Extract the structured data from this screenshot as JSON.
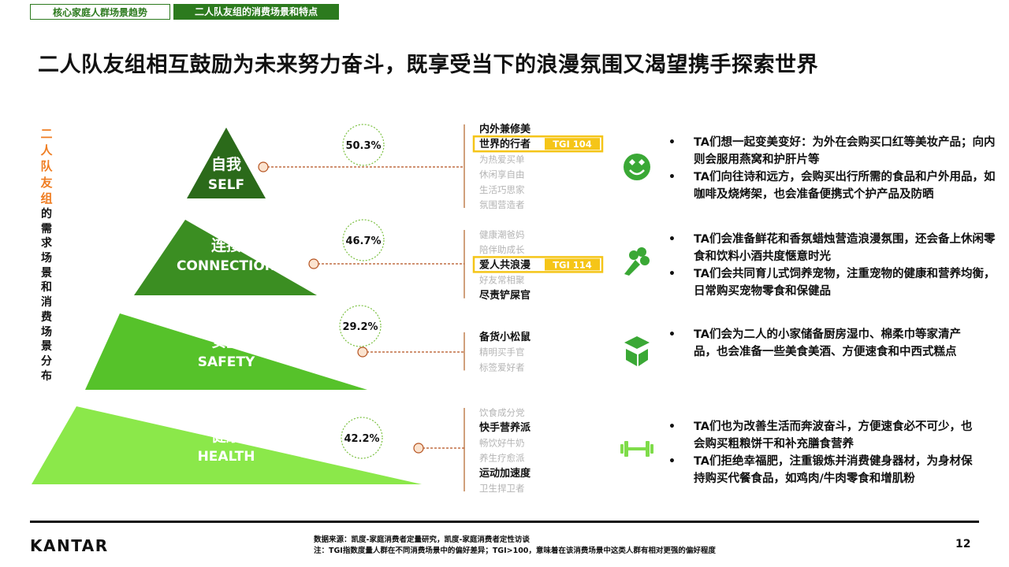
{
  "tabs": {
    "tab1": "核心家庭人群场景趋势",
    "tab2": "二人队友组的消费场景和特点"
  },
  "title": "二人队友组相互鼓励为未来努力奋斗，既享受当下的浪漫氛围又渴望携手探索世界",
  "sidebar": {
    "highlight": "二人队友组",
    "rest": "的需求场景和消费场景分布"
  },
  "levels": [
    {
      "name_cn": "自我",
      "name_en": "SELF",
      "percent": "50.3%",
      "color": "#2b6a1a",
      "icon": "smiling-face-hearts-icon",
      "tags": [
        {
          "text": "内外兼修美",
          "active": true
        },
        {
          "text": "世界的行者",
          "active": true,
          "tgi": "TGI 104"
        },
        {
          "text": "为热爱买单",
          "active": false
        },
        {
          "text": "休闲享自由",
          "active": false
        },
        {
          "text": "生活巧思家",
          "active": false
        },
        {
          "text": "氛围营造者",
          "active": false
        }
      ],
      "bullets": [
        "TA们想一起变美变好：为外在会购买口红等美妆产品；向内则会服用燕窝和护肝片等",
        "TA们向往诗和远方，会购买出行所需的食品和户外用品，如咖啡及烧烤架，也会准备便携式个护产品及防晒"
      ]
    },
    {
      "name_cn": "连接",
      "name_en": "CONNECTION",
      "percent": "46.7%",
      "color": "#3b8e22",
      "icon": "flower-bouquet-icon",
      "tags": [
        {
          "text": "健康潮爸妈",
          "active": false
        },
        {
          "text": "陪伴助成长",
          "active": false
        },
        {
          "text": "爱人共浪漫",
          "active": true,
          "tgi": "TGI 114"
        },
        {
          "text": "好友常相聚",
          "active": false
        },
        {
          "text": "尽责铲屎官",
          "active": true
        }
      ],
      "bullets": [
        "TA们会准备鲜花和香氛蜡烛营造浪漫氛围，还会备上休闲零食和饮料小酒共度惬意时光",
        "TA们会共同育儿式饲养宠物，注重宠物的健康和营养均衡，日常购买宠物零食和保健品"
      ]
    },
    {
      "name_cn": "安全",
      "name_en": "SAFETY",
      "percent": "29.2%",
      "color": "#56c22a",
      "icon": "storage-box-icon",
      "tags": [
        {
          "text": "备货小松鼠",
          "active": true
        },
        {
          "text": "精明买手官",
          "active": false
        },
        {
          "text": "标签爱好者",
          "active": false
        }
      ],
      "bullets": [
        "TA们会为二人的小家储备厨房湿巾、棉柔巾等家清产品，也会准备一些美食美酒、方便速食和中西式糕点"
      ]
    },
    {
      "name_cn": "健康",
      "name_en": "HEALTH",
      "percent": "42.2%",
      "color": "#8be84a",
      "icon": "dumbbell-icon",
      "tags": [
        {
          "text": "饮食成分党",
          "active": false
        },
        {
          "text": "快手营养派",
          "active": true
        },
        {
          "text": "畅饮好牛奶",
          "active": false
        },
        {
          "text": "养生疗愈派",
          "active": false
        },
        {
          "text": "运动加速度",
          "active": true
        },
        {
          "text": "卫生捍卫者",
          "active": false
        }
      ],
      "bullets": [
        "TA们也为改善生活而奔波奋斗，方便速食必不可少，也会购买粗粮饼干和补充膳食营养",
        "TA们拒绝幸福肥，注重锻炼并消费健身器材，为身材保持购买代餐食品，如鸡肉/牛肉零食和增肌粉"
      ]
    }
  ],
  "footer": {
    "logo": "KANTAR",
    "source": "数据来源：凯度-家庭消费者定量研究，凯度-家庭消费者定性访谈",
    "note": "注：TGI指数度量人群在不同消费场景中的偏好差异；TGI>100，意味着在该消费场景中这类人群有相对更强的偏好程度",
    "page": "12"
  },
  "colors": {
    "tgi_box": "#f5c518",
    "connector": "#b5521f",
    "inactive_tag": "#b4b4b4",
    "circle_border": "#7cc142",
    "accent": "#ef7d22"
  }
}
